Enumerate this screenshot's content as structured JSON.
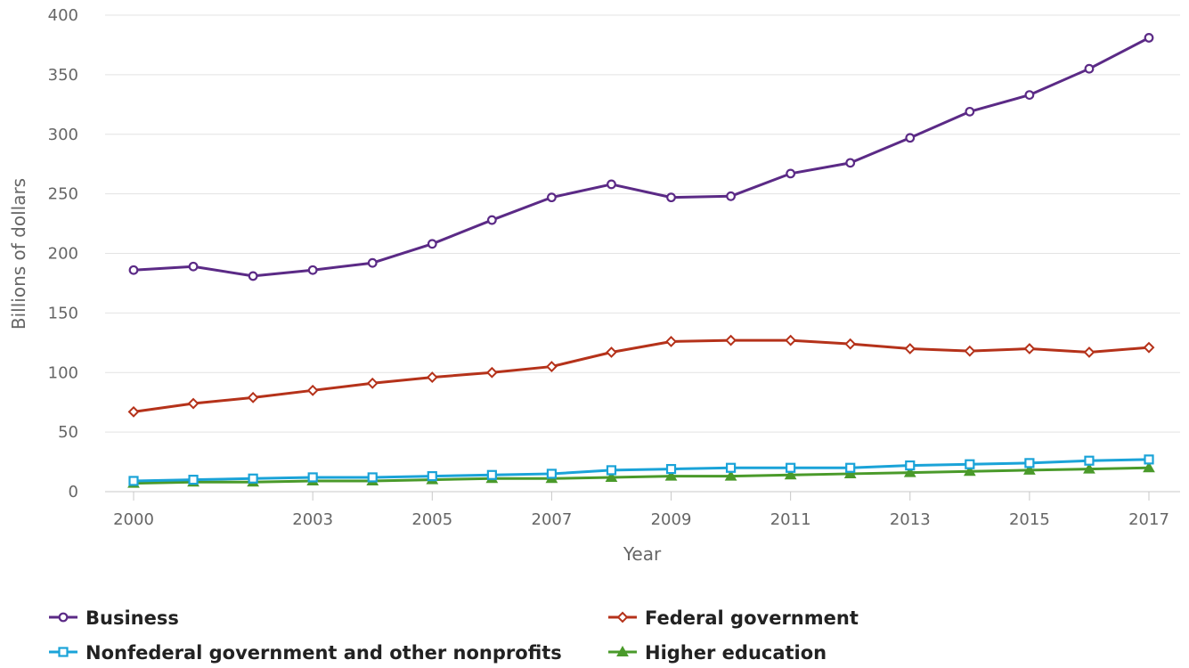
{
  "chart_data": {
    "type": "line",
    "xlabel": "Year",
    "ylabel": "Billions of dollars",
    "xlim": [
      2000,
      2017
    ],
    "ylim": [
      0,
      400
    ],
    "y_ticks": [
      0,
      50,
      100,
      150,
      200,
      250,
      300,
      350,
      400
    ],
    "x_ticks": [
      2000,
      2003,
      2005,
      2007,
      2009,
      2011,
      2013,
      2015,
      2017
    ],
    "grid": true,
    "legend": "bottom",
    "x": [
      2000,
      2001,
      2002,
      2003,
      2004,
      2005,
      2006,
      2007,
      2008,
      2009,
      2010,
      2011,
      2012,
      2013,
      2014,
      2015,
      2016,
      2017
    ],
    "series": [
      {
        "name": "Business",
        "color": "#5b2a86",
        "marker": "circle",
        "values": [
          186,
          189,
          181,
          186,
          192,
          208,
          228,
          247,
          258,
          247,
          248,
          267,
          276,
          297,
          319,
          333,
          355,
          381
        ]
      },
      {
        "name": "Federal government",
        "color": "#b5321a",
        "marker": "diamond",
        "values": [
          67,
          74,
          79,
          85,
          91,
          96,
          100,
          105,
          117,
          126,
          127,
          127,
          124,
          120,
          118,
          120,
          117,
          121
        ]
      },
      {
        "name": "Nonfederal government and other nonprofits",
        "color": "#1aa3d8",
        "marker": "square",
        "values": [
          9,
          10,
          11,
          12,
          12,
          13,
          14,
          15,
          18,
          19,
          20,
          20,
          20,
          22,
          23,
          24,
          26,
          27
        ]
      },
      {
        "name": "Higher education",
        "color": "#4a9a2a",
        "marker": "triangle",
        "values": [
          7,
          8,
          8,
          9,
          9,
          10,
          11,
          11,
          12,
          13,
          13,
          14,
          15,
          16,
          17,
          18,
          19,
          20
        ]
      }
    ]
  }
}
